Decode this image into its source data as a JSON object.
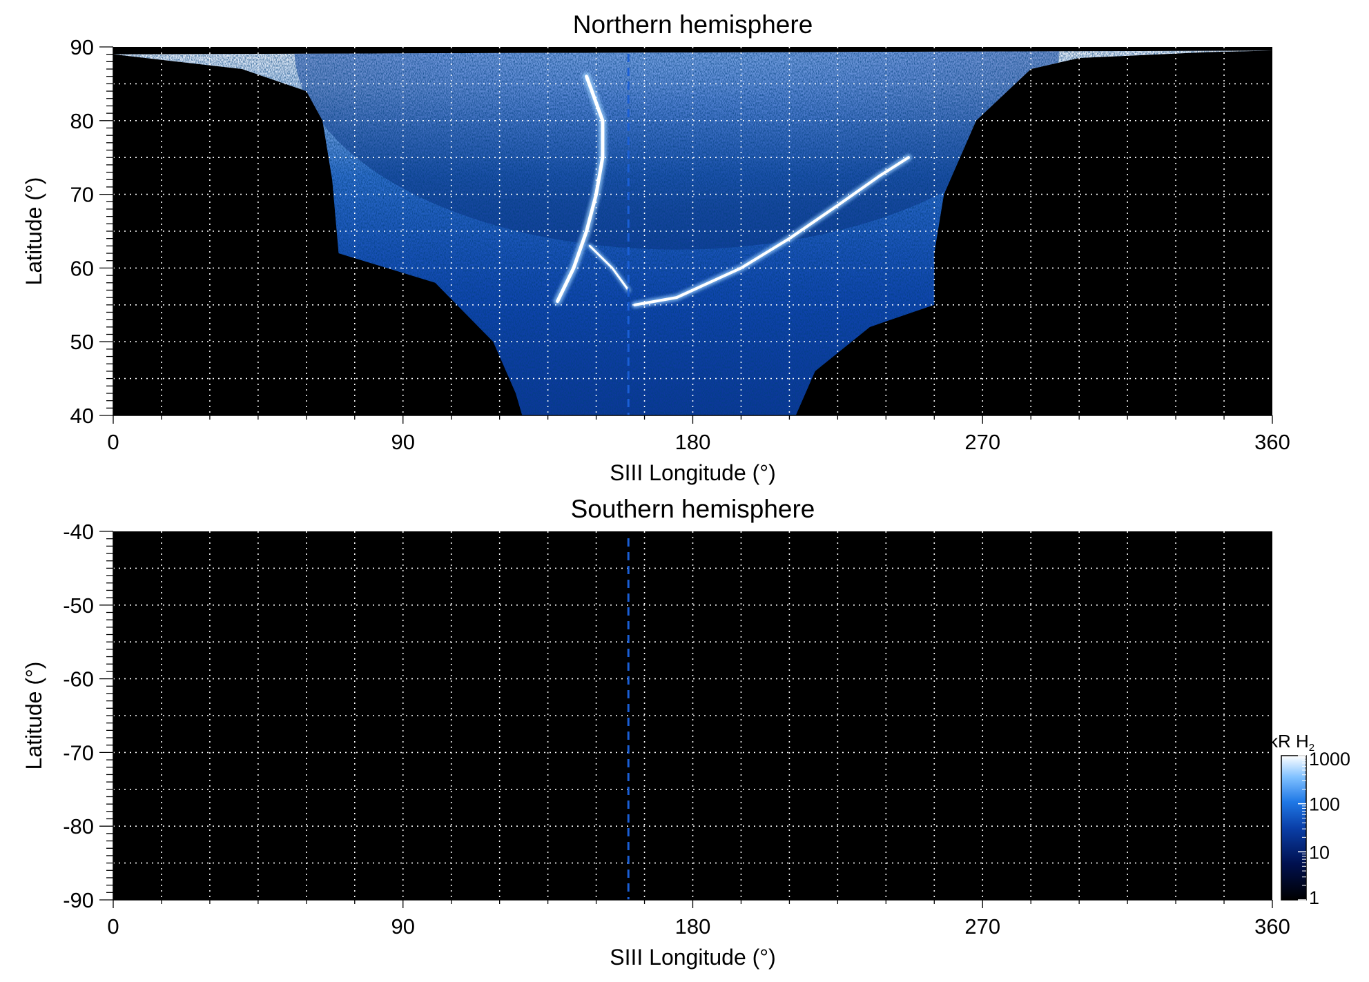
{
  "figure": {
    "colorbar": {
      "title": "kR H",
      "title_subscript": "2",
      "scale": "log",
      "range": [
        1,
        1000
      ],
      "tick_labels": [
        "1000",
        "100",
        "10",
        "1"
      ],
      "tick_values": [
        1000,
        100,
        10,
        1
      ],
      "colors": [
        "#000000",
        "#00104f",
        "#0a3fa8",
        "#1f78e6",
        "#7fc0ff",
        "#ffffff"
      ]
    },
    "marker_line_color": "#1a5fd6"
  },
  "chart_data": [
    {
      "type": "heatmap",
      "title": "Northern hemisphere",
      "xlabel": "SIII Longitude (°)",
      "ylabel": "Latitude (°)",
      "xlim": [
        0,
        360
      ],
      "ylim": [
        40,
        90
      ],
      "x_ticks": [
        "0",
        "90",
        "180",
        "270",
        "360"
      ],
      "y_ticks": [
        "40",
        "50",
        "60",
        "70",
        "80",
        "90"
      ],
      "x_tick_values": [
        0,
        90,
        180,
        270,
        360
      ],
      "y_tick_values": [
        40,
        50,
        60,
        70,
        80,
        90
      ],
      "grid": true,
      "grid_step_x": 15,
      "grid_step_y": 5,
      "background_color": "#000000",
      "dashed_marker_longitude": 160,
      "coverage_boundary": [
        [
          0,
          89
        ],
        [
          20,
          88
        ],
        [
          40,
          87
        ],
        [
          60,
          84
        ],
        [
          65,
          80
        ],
        [
          68,
          72
        ],
        [
          70,
          62
        ],
        [
          100,
          58
        ],
        [
          118,
          50
        ],
        [
          125,
          43
        ],
        [
          127,
          40
        ],
        [
          212,
          40
        ],
        [
          218,
          46
        ],
        [
          235,
          52
        ],
        [
          255,
          55
        ],
        [
          255,
          62
        ],
        [
          258,
          70
        ],
        [
          268,
          80
        ],
        [
          285,
          87
        ],
        [
          300,
          88.5
        ],
        [
          340,
          89.3
        ],
        [
          360,
          89.5
        ]
      ],
      "main_emission_oval": [
        [
          138,
          55.5
        ],
        [
          143,
          60
        ],
        [
          147,
          65
        ],
        [
          150,
          70
        ],
        [
          152,
          75
        ],
        [
          152,
          80
        ],
        [
          147,
          86
        ]
      ],
      "main_emission_arc": [
        [
          162,
          55
        ],
        [
          175,
          56
        ],
        [
          195,
          60
        ],
        [
          210,
          64
        ],
        [
          225,
          68.5
        ],
        [
          238,
          72.5
        ],
        [
          247,
          75
        ]
      ],
      "inner_arc": [
        [
          160,
          57
        ],
        [
          155,
          60
        ],
        [
          148,
          63
        ]
      ],
      "polar_cap_brightness": "bright near pole, decreasing equatorward"
    },
    {
      "type": "heatmap",
      "title": "Southern hemisphere",
      "xlabel": "SIII Longitude (°)",
      "ylabel": "Latitude (°)",
      "xlim": [
        0,
        360
      ],
      "ylim": [
        -90,
        -40
      ],
      "x_ticks": [
        "0",
        "90",
        "180",
        "270",
        "360"
      ],
      "y_ticks": [
        "-90",
        "-80",
        "-70",
        "-60",
        "-50",
        "-40"
      ],
      "x_tick_values": [
        0,
        90,
        180,
        270,
        360
      ],
      "y_tick_values": [
        -90,
        -80,
        -70,
        -60,
        -50,
        -40
      ],
      "grid": true,
      "grid_step_x": 15,
      "grid_step_y": 5,
      "background_color": "#000000",
      "dashed_marker_longitude": 160
    }
  ]
}
